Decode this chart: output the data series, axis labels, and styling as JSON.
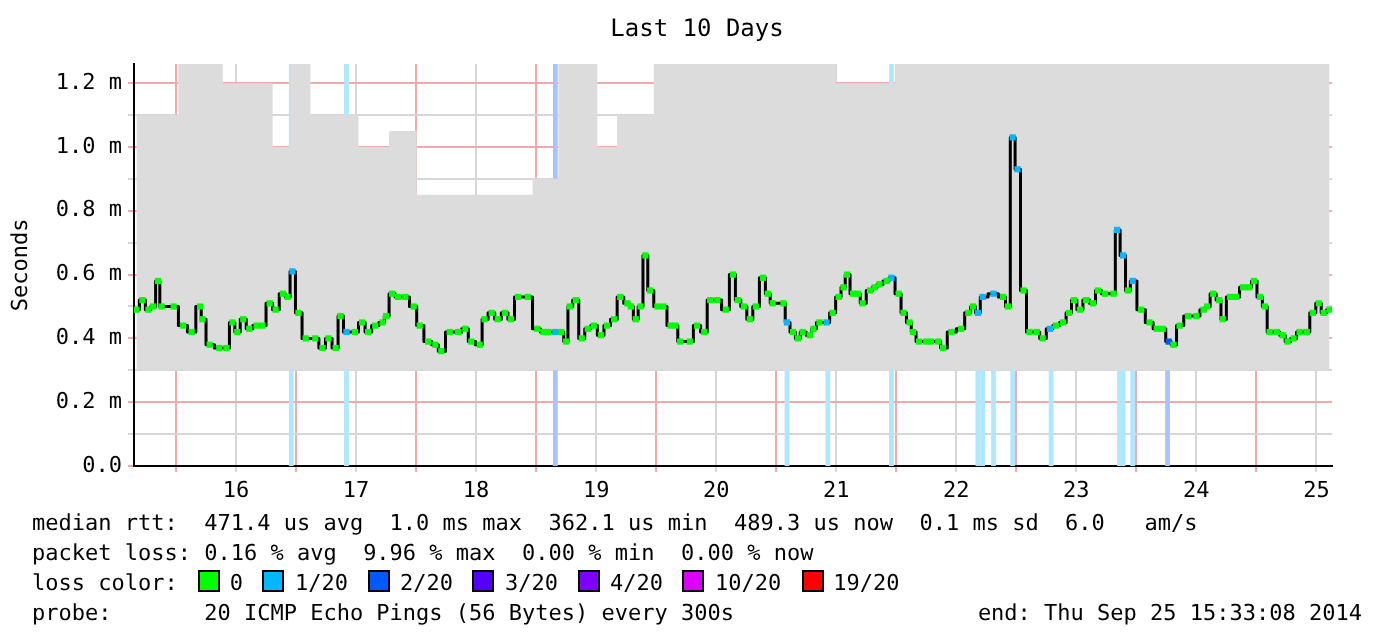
{
  "chart_data": {
    "type": "step",
    "title": "Last 10 Days",
    "ylabel": "Seconds",
    "legend_title": "loss color:",
    "annotations": [
      "median rtt:  471.4 us avg  1.0 ms max  362.1 us min  489.3 us now  0.1 ms sd  6.0   am/s",
      "packet loss: 0.16 % avg  9.96 % max  0.00 % min  0.00 % now",
      "probe:       20 ICMP Echo Pings (56 Bytes) every 300s",
      "end: Thu Sep 25 15:33:08 2014"
    ],
    "xlim": [
      15.15,
      25.13
    ],
    "ylim": [
      0,
      1.26
    ],
    "xticks": [
      {
        "value": 15.5,
        "label": null
      },
      16,
      {
        "value": 16.5,
        "label": null
      },
      17,
      {
        "value": 17.5,
        "label": null
      },
      18,
      {
        "value": 18.5,
        "label": null
      },
      19,
      {
        "value": 19.5,
        "label": null
      },
      20,
      {
        "value": 20.5,
        "label": null
      },
      21,
      {
        "value": 21.5,
        "label": null
      },
      22,
      {
        "value": 22.5,
        "label": null
      },
      23,
      {
        "value": 23.5,
        "label": null
      },
      24,
      {
        "value": 24.5,
        "label": null
      },
      25
    ],
    "yticks": [
      {
        "value": 0,
        "label": "0.0"
      },
      {
        "value": 0.1,
        "label": null
      },
      {
        "value": 0.2,
        "label": "0.2 m"
      },
      {
        "value": 0.3,
        "label": null
      },
      {
        "value": 0.4,
        "label": "0.4 m"
      },
      {
        "value": 0.5,
        "label": null
      },
      {
        "value": 0.6,
        "label": "0.6 m"
      },
      {
        "value": 0.7,
        "label": null
      },
      {
        "value": 0.8,
        "label": "0.8 m"
      },
      {
        "value": 0.9,
        "label": null
      },
      {
        "value": 1.0,
        "label": "1.0 m"
      },
      {
        "value": 1.1,
        "label": null
      },
      {
        "value": 1.2,
        "label": "1.2 m"
      }
    ],
    "grid": true,
    "legend": "bottom",
    "bands": [
      {
        "axis": "x",
        "from": 16.44,
        "to": 16.48,
        "color": "#aee8ff"
      },
      {
        "axis": "x",
        "from": 16.9,
        "to": 16.94,
        "color": "#aee8ff"
      },
      {
        "axis": "x",
        "from": 18.64,
        "to": 18.68,
        "color": "#a8c4ff"
      },
      {
        "axis": "x",
        "from": 20.57,
        "to": 20.61,
        "color": "#aee8ff"
      },
      {
        "axis": "x",
        "from": 20.91,
        "to": 20.95,
        "color": "#aee8ff"
      },
      {
        "axis": "x",
        "from": 21.44,
        "to": 21.48,
        "color": "#aee8ff"
      },
      {
        "axis": "x",
        "from": 22.16,
        "to": 22.2,
        "color": "#aee8ff"
      },
      {
        "axis": "x",
        "from": 22.2,
        "to": 22.24,
        "color": "#aee8ff"
      },
      {
        "axis": "x",
        "from": 22.29,
        "to": 22.33,
        "color": "#aee8ff"
      },
      {
        "axis": "x",
        "from": 22.45,
        "to": 22.49,
        "color": "#aee8ff"
      },
      {
        "axis": "x",
        "from": 22.77,
        "to": 22.81,
        "color": "#aee8ff"
      },
      {
        "axis": "x",
        "from": 23.34,
        "to": 23.38,
        "color": "#aee8ff"
      },
      {
        "axis": "x",
        "from": 23.38,
        "to": 23.41,
        "color": "#aee8ff"
      },
      {
        "axis": "x",
        "from": 23.45,
        "to": 23.49,
        "color": "#aee8ff"
      },
      {
        "axis": "x",
        "from": 23.74,
        "to": 23.78,
        "color": "#a8c4ff"
      }
    ],
    "x": [
      15.17,
      15.22,
      15.27,
      15.31,
      15.35,
      15.38,
      15.48,
      15.56,
      15.63,
      15.7,
      15.72,
      15.78,
      15.86,
      15.92,
      15.97,
      16.01,
      16.06,
      16.11,
      16.17,
      16.22,
      16.28,
      16.33,
      16.39,
      16.43,
      16.47,
      16.52,
      16.58,
      16.66,
      16.72,
      16.77,
      16.83,
      16.87,
      16.92,
      16.99,
      17.05,
      17.1,
      17.16,
      17.22,
      17.25,
      17.3,
      17.35,
      17.41,
      17.48,
      17.53,
      17.6,
      17.66,
      17.71,
      17.78,
      17.85,
      17.91,
      17.96,
      18.03,
      18.07,
      18.13,
      18.18,
      18.24,
      18.29,
      18.35,
      18.43,
      18.51,
      18.56,
      18.6,
      18.66,
      18.71,
      18.75,
      18.78,
      18.83,
      18.88,
      18.93,
      18.98,
      19.04,
      19.09,
      19.15,
      19.2,
      19.26,
      19.29,
      19.33,
      19.37,
      19.41,
      19.45,
      19.51,
      19.56,
      19.62,
      19.66,
      19.7,
      19.78,
      19.84,
      19.9,
      19.95,
      20.01,
      20.08,
      20.14,
      20.18,
      20.23,
      20.28,
      20.33,
      20.39,
      20.43,
      20.47,
      20.56,
      20.59,
      20.64,
      20.68,
      20.72,
      20.78,
      20.81,
      20.86,
      20.92,
      20.97,
      21.02,
      21.06,
      21.09,
      21.14,
      21.18,
      21.22,
      21.28,
      21.32,
      21.36,
      21.42,
      21.46,
      21.52,
      21.56,
      21.61,
      21.64,
      21.69,
      21.75,
      21.79,
      21.85,
      21.89,
      21.96,
      22.04,
      22.1,
      22.14,
      22.18,
      22.22,
      22.31,
      22.39,
      22.43,
      22.47,
      22.51,
      22.56,
      22.61,
      22.67,
      22.72,
      22.78,
      22.83,
      22.89,
      22.94,
      22.98,
      23.03,
      23.08,
      23.14,
      23.18,
      23.24,
      23.31,
      23.34,
      23.39,
      23.43,
      23.47,
      23.54,
      23.61,
      23.67,
      23.72,
      23.77,
      23.81,
      23.86,
      23.93,
      24.0,
      24.06,
      24.09,
      24.14,
      24.19,
      24.22,
      24.28,
      24.33,
      24.39,
      24.44,
      24.48,
      24.53,
      24.57,
      24.61,
      24.67,
      24.72,
      24.76,
      24.81,
      24.86,
      24.92,
      24.97,
      25.02,
      25.06,
      25.11
    ],
    "series": [
      {
        "color": "#000000",
        "values": [
          0.49,
          0.52,
          0.49,
          0.5,
          0.58,
          0.5,
          0.5,
          0.44,
          0.42,
          0.5,
          0.46,
          0.38,
          0.37,
          0.37,
          0.45,
          0.42,
          0.46,
          0.43,
          0.44,
          0.44,
          0.51,
          0.49,
          0.54,
          0.53,
          0.61,
          0.48,
          0.4,
          0.4,
          0.37,
          0.4,
          0.37,
          0.47,
          0.42,
          0.42,
          0.45,
          0.42,
          0.44,
          0.45,
          0.47,
          0.54,
          0.53,
          0.53,
          0.5,
          0.44,
          0.39,
          0.38,
          0.36,
          0.42,
          0.42,
          0.43,
          0.39,
          0.38,
          0.46,
          0.48,
          0.46,
          0.48,
          0.46,
          0.53,
          0.53,
          0.43,
          0.42,
          0.42,
          0.42,
          0.42,
          0.39,
          0.5,
          0.52,
          0.4,
          0.43,
          0.44,
          0.41,
          0.44,
          0.46,
          0.53,
          0.51,
          0.5,
          0.46,
          0.5,
          0.66,
          0.55,
          0.5,
          0.5,
          0.44,
          0.44,
          0.39,
          0.39,
          0.44,
          0.42,
          0.52,
          0.52,
          0.49,
          0.6,
          0.52,
          0.5,
          0.46,
          0.5,
          0.59,
          0.54,
          0.51,
          0.51,
          0.45,
          0.42,
          0.4,
          0.42,
          0.41,
          0.43,
          0.45,
          0.45,
          0.48,
          0.53,
          0.56,
          0.6,
          0.54,
          0.54,
          0.51,
          0.55,
          0.56,
          0.57,
          0.58,
          0.59,
          0.54,
          0.48,
          0.45,
          0.42,
          0.39,
          0.39,
          0.39,
          0.39,
          0.37,
          0.42,
          0.43,
          0.48,
          0.5,
          0.48,
          0.53,
          0.54,
          0.53,
          0.5,
          1.03,
          0.93,
          0.55,
          0.42,
          0.42,
          0.4,
          0.43,
          0.44,
          0.45,
          0.48,
          0.52,
          0.49,
          0.52,
          0.51,
          0.55,
          0.54,
          0.54,
          0.74,
          0.66,
          0.55,
          0.58,
          0.49,
          0.45,
          0.43,
          0.43,
          0.39,
          0.38,
          0.44,
          0.47,
          0.47,
          0.49,
          0.5,
          0.54,
          0.52,
          0.46,
          0.53,
          0.53,
          0.56,
          0.56,
          0.58,
          0.53,
          0.5,
          0.42,
          0.42,
          0.41,
          0.39,
          0.4,
          0.42,
          0.42,
          0.48,
          0.51,
          0.48,
          0.49
        ],
        "lower": [
          0.3,
          0.3,
          0.3,
          0.3,
          0.3,
          0.3,
          0.3,
          0.3,
          0.3,
          0.3,
          0.3,
          0.3,
          0.3,
          0.3,
          0.3,
          0.3,
          0.3,
          0.3,
          0.3,
          0.3,
          0.3,
          0.3,
          0.3,
          0.3,
          0.3,
          0.3,
          0.3,
          0.3,
          0.3,
          0.3,
          0.3,
          0.3,
          0.3,
          0.3,
          0.3,
          0.3,
          0.3,
          0.3,
          0.3,
          0.3,
          0.3,
          0.3,
          0.3,
          0.3,
          0.3,
          0.3,
          0.3,
          0.3,
          0.3,
          0.3,
          0.3,
          0.3,
          0.3,
          0.3,
          0.3,
          0.3,
          0.3,
          0.3,
          0.3,
          0.3,
          0.3,
          0.3,
          0.3,
          0.3,
          0.3,
          0.3,
          0.3,
          0.3,
          0.3,
          0.3,
          0.3,
          0.3,
          0.3,
          0.3,
          0.3,
          0.3,
          0.3,
          0.3,
          0.3,
          0.3,
          0.3,
          0.3,
          0.3,
          0.3,
          0.3,
          0.3,
          0.3,
          0.3,
          0.3,
          0.3,
          0.3,
          0.3,
          0.3,
          0.3,
          0.3,
          0.3,
          0.3,
          0.3,
          0.3,
          0.3,
          0.3,
          0.3,
          0.3,
          0.3,
          0.3,
          0.3,
          0.3,
          0.3,
          0.3,
          0.3,
          0.3,
          0.3,
          0.3,
          0.3,
          0.3,
          0.3,
          0.3,
          0.3,
          0.3,
          0.3,
          0.3,
          0.3,
          0.3,
          0.3,
          0.3,
          0.3,
          0.3,
          0.3,
          0.3,
          0.3,
          0.3,
          0.3,
          0.3,
          0.3,
          0.3,
          0.3,
          0.3,
          0.3,
          0.3,
          0.3,
          0.3,
          0.3,
          0.3,
          0.3,
          0.3,
          0.3,
          0.3,
          0.3,
          0.3,
          0.3,
          0.3,
          0.3,
          0.3,
          0.3,
          0.3,
          0.3,
          0.3,
          0.3,
          0.3,
          0.3,
          0.3,
          0.3,
          0.3,
          0.3,
          0.3,
          0.3,
          0.3,
          0.3,
          0.3,
          0.3,
          0.3,
          0.3,
          0.3,
          0.3,
          0.3,
          0.3,
          0.3,
          0.3,
          0.3,
          0.3,
          0.3,
          0.3,
          0.3,
          0.3,
          0.3,
          0.3,
          0.3,
          0.3,
          0.3,
          0.3,
          0.3
        ],
        "upper": [
          1.1,
          1.1,
          1.1,
          1.1,
          1.1,
          1.1,
          1.1,
          1.26,
          1.26,
          1.26,
          1.26,
          1.26,
          1.26,
          1.2,
          1.2,
          1.2,
          1.2,
          1.2,
          1.2,
          1.2,
          1.2,
          1.0,
          1.0,
          1.0,
          1.26,
          1.26,
          1.26,
          1.1,
          1.1,
          1.1,
          1.1,
          1.1,
          1.1,
          1.1,
          1.0,
          1.0,
          1.0,
          1.0,
          1.0,
          1.05,
          1.05,
          1.05,
          1.05,
          0.85,
          0.85,
          0.85,
          0.85,
          0.85,
          0.85,
          0.85,
          0.85,
          0.85,
          0.85,
          0.85,
          0.85,
          0.85,
          0.85,
          0.85,
          0.85,
          0.9,
          0.9,
          0.9,
          0.9,
          1.26,
          1.26,
          1.26,
          1.26,
          1.26,
          1.26,
          1.26,
          1.0,
          1.0,
          1.0,
          1.1,
          1.1,
          1.1,
          1.1,
          1.1,
          1.1,
          1.1,
          1.26,
          1.26,
          1.26,
          1.26,
          1.26,
          1.26,
          1.26,
          1.26,
          1.26,
          1.26,
          1.26,
          1.26,
          1.26,
          1.26,
          1.26,
          1.26,
          1.26,
          1.26,
          1.26,
          1.26,
          1.26,
          1.26,
          1.26,
          1.26,
          1.26,
          1.26,
          1.26,
          1.26,
          1.26,
          1.2,
          1.2,
          1.2,
          1.2,
          1.2,
          1.2,
          1.2,
          1.2,
          1.2,
          1.2,
          1.2,
          1.26,
          1.26,
          1.26,
          1.26,
          1.26,
          1.26,
          1.26,
          1.26,
          1.26,
          1.26,
          1.26,
          1.26,
          1.26,
          1.26,
          1.26,
          1.26,
          1.26,
          1.26,
          1.26,
          1.26,
          1.26,
          1.26,
          1.26,
          1.26,
          1.26,
          1.26,
          1.26,
          1.26,
          1.26,
          1.26,
          1.26,
          1.26,
          1.26,
          1.26,
          1.26,
          1.26,
          1.26,
          1.26,
          1.26,
          1.26,
          1.26,
          1.26,
          1.26,
          1.26,
          1.26,
          1.26,
          1.26,
          1.26,
          1.26,
          1.26,
          1.26,
          1.26,
          1.26,
          1.26,
          1.26,
          1.26,
          1.26,
          1.26,
          1.26,
          1.26,
          1.26,
          1.26,
          1.26,
          1.26,
          1.26,
          1.26,
          1.26,
          1.26,
          1.26,
          1.26,
          1.26
        ]
      },
      {
        "type": "scatter",
        "name": "0",
        "color": "#00ff00",
        "marker": "square",
        "x": [
          15.17,
          15.22,
          15.27,
          15.31,
          15.35,
          15.38,
          15.48,
          15.56,
          15.63,
          15.7,
          15.72,
          15.78,
          15.86,
          15.92,
          15.97,
          16.01,
          16.06,
          16.11,
          16.17,
          16.22,
          16.28,
          16.33,
          16.39,
          16.43,
          16.52,
          16.58,
          16.66,
          16.72,
          16.77,
          16.83,
          16.87,
          16.99,
          17.05,
          17.1,
          17.16,
          17.22,
          17.25,
          17.3,
          17.35,
          17.41,
          17.48,
          17.53,
          17.6,
          17.66,
          17.71,
          17.78,
          17.85,
          17.91,
          17.96,
          18.03,
          18.07,
          18.13,
          18.18,
          18.24,
          18.29,
          18.35,
          18.43,
          18.51,
          18.56,
          18.6,
          18.71,
          18.75,
          18.78,
          18.83,
          18.88,
          18.93,
          18.98,
          19.04,
          19.09,
          19.15,
          19.2,
          19.26,
          19.29,
          19.33,
          19.37,
          19.41,
          19.45,
          19.51,
          19.56,
          19.62,
          19.66,
          19.7,
          19.78,
          19.84,
          19.9,
          19.95,
          20.01,
          20.08,
          20.14,
          20.18,
          20.23,
          20.28,
          20.33,
          20.39,
          20.43,
          20.47,
          20.56,
          20.64,
          20.68,
          20.72,
          20.78,
          20.81,
          20.86,
          20.97,
          21.02,
          21.06,
          21.09,
          21.14,
          21.18,
          21.22,
          21.28,
          21.32,
          21.36,
          21.42,
          21.52,
          21.56,
          21.61,
          21.64,
          21.69,
          21.75,
          21.79,
          21.85,
          21.89,
          21.96,
          22.04,
          22.1,
          22.14,
          22.39,
          22.43,
          22.56,
          22.61,
          22.67,
          22.72,
          22.83,
          22.89,
          22.94,
          22.98,
          23.03,
          23.08,
          23.14,
          23.18,
          23.24,
          23.31,
          23.43,
          23.54,
          23.61,
          23.67,
          23.72,
          23.81,
          23.86,
          23.93,
          24.0,
          24.06,
          24.09,
          24.14,
          24.19,
          24.22,
          24.28,
          24.33,
          24.39,
          24.44,
          24.48,
          24.53,
          24.57,
          24.61,
          24.67,
          24.72,
          24.76,
          24.81,
          24.86,
          24.92,
          24.97,
          25.02,
          25.06,
          25.11
        ],
        "values": [
          0.49,
          0.52,
          0.49,
          0.5,
          0.58,
          0.5,
          0.5,
          0.44,
          0.42,
          0.5,
          0.46,
          0.38,
          0.37,
          0.37,
          0.45,
          0.42,
          0.46,
          0.43,
          0.44,
          0.44,
          0.51,
          0.49,
          0.54,
          0.53,
          0.48,
          0.4,
          0.4,
          0.37,
          0.4,
          0.37,
          0.47,
          0.42,
          0.45,
          0.42,
          0.44,
          0.45,
          0.47,
          0.54,
          0.53,
          0.53,
          0.5,
          0.44,
          0.39,
          0.38,
          0.36,
          0.42,
          0.42,
          0.43,
          0.39,
          0.38,
          0.46,
          0.48,
          0.46,
          0.48,
          0.46,
          0.53,
          0.53,
          0.43,
          0.42,
          0.42,
          0.42,
          0.39,
          0.5,
          0.52,
          0.4,
          0.43,
          0.44,
          0.41,
          0.44,
          0.46,
          0.53,
          0.51,
          0.5,
          0.46,
          0.5,
          0.66,
          0.55,
          0.5,
          0.5,
          0.44,
          0.44,
          0.39,
          0.39,
          0.44,
          0.42,
          0.52,
          0.52,
          0.49,
          0.6,
          0.52,
          0.5,
          0.46,
          0.5,
          0.59,
          0.54,
          0.51,
          0.51,
          0.42,
          0.4,
          0.42,
          0.41,
          0.43,
          0.45,
          0.48,
          0.53,
          0.56,
          0.6,
          0.54,
          0.54,
          0.51,
          0.55,
          0.56,
          0.57,
          0.58,
          0.54,
          0.48,
          0.45,
          0.42,
          0.39,
          0.39,
          0.39,
          0.39,
          0.37,
          0.42,
          0.43,
          0.48,
          0.5,
          0.53,
          0.5,
          0.55,
          0.42,
          0.42,
          0.4,
          0.44,
          0.45,
          0.48,
          0.52,
          0.49,
          0.52,
          0.51,
          0.55,
          0.54,
          0.54,
          0.55,
          0.49,
          0.45,
          0.43,
          0.43,
          0.38,
          0.44,
          0.47,
          0.47,
          0.49,
          0.5,
          0.54,
          0.52,
          0.46,
          0.53,
          0.53,
          0.56,
          0.56,
          0.58,
          0.53,
          0.5,
          0.42,
          0.42,
          0.41,
          0.39,
          0.4,
          0.42,
          0.42,
          0.48,
          0.51,
          0.48,
          0.49
        ]
      },
      {
        "type": "scatter",
        "name": "1/20",
        "color": "#00b8ff",
        "marker": "square",
        "x": [
          16.47,
          16.92,
          18.66,
          20.59,
          20.92,
          21.46,
          22.18,
          22.22,
          22.31,
          22.47,
          22.51,
          22.78,
          23.34,
          23.39,
          23.47
        ],
        "values": [
          0.61,
          0.42,
          0.42,
          0.45,
          0.45,
          0.59,
          0.48,
          0.53,
          0.54,
          1.03,
          0.93,
          0.43,
          0.74,
          0.66,
          0.58
        ]
      },
      {
        "type": "scatter",
        "name": "2/20",
        "color": "#0059ff",
        "marker": "square",
        "x": [
          23.77
        ],
        "values": [
          0.39
        ]
      },
      {
        "type": "scatter",
        "name": "3/20",
        "color": "#5500ff",
        "marker": "square",
        "values": [
          null,
          null,
          null,
          null,
          null,
          null,
          null,
          null,
          null,
          null,
          null,
          null,
          null,
          null,
          null,
          null,
          null,
          null,
          null,
          null,
          null,
          null,
          null,
          null,
          null,
          null,
          null,
          null,
          null,
          null,
          null,
          null,
          null,
          null,
          null,
          null,
          null,
          null,
          null,
          null,
          null,
          null,
          null,
          null,
          null,
          null,
          null,
          null,
          null,
          null,
          null,
          null,
          null,
          null,
          null,
          null,
          null,
          null,
          null,
          null,
          null,
          null,
          null,
          null,
          null,
          null,
          null,
          null,
          null,
          null,
          null,
          null,
          null,
          null,
          null,
          null,
          null,
          null,
          null,
          null,
          null,
          null,
          null,
          null,
          null,
          null,
          null,
          null,
          null,
          null,
          null,
          null,
          null,
          null,
          null,
          null,
          null,
          null,
          null,
          null,
          null,
          null,
          null,
          null,
          null,
          null,
          null,
          null,
          null,
          null,
          null,
          null,
          null,
          null,
          null,
          null,
          null,
          null,
          null,
          null,
          null,
          null,
          null,
          null,
          null,
          null,
          null,
          null,
          null,
          null,
          null,
          null,
          null,
          null,
          null,
          null,
          null,
          null,
          null,
          null,
          null,
          null,
          null,
          null,
          null,
          null,
          null,
          null,
          null,
          null,
          null,
          null,
          null,
          null,
          null,
          null,
          null,
          null,
          null,
          null,
          null,
          null,
          null,
          null,
          null,
          null,
          null,
          null,
          null,
          null,
          null,
          null,
          null,
          null,
          null,
          null,
          null,
          null,
          null,
          null,
          null,
          null,
          null,
          null,
          null,
          null,
          null,
          null,
          null,
          null,
          null
        ]
      },
      {
        "type": "scatter",
        "name": "4/20",
        "color": "#7e00ff",
        "marker": "square",
        "values": [
          null,
          null,
          null,
          null,
          null,
          null,
          null,
          null,
          null,
          null,
          null,
          null,
          null,
          null,
          null,
          null,
          null,
          null,
          null,
          null,
          null,
          null,
          null,
          null,
          null,
          null,
          null,
          null,
          null,
          null,
          null,
          null,
          null,
          null,
          null,
          null,
          null,
          null,
          null,
          null,
          null,
          null,
          null,
          null,
          null,
          null,
          null,
          null,
          null,
          null,
          null,
          null,
          null,
          null,
          null,
          null,
          null,
          null,
          null,
          null,
          null,
          null,
          null,
          null,
          null,
          null,
          null,
          null,
          null,
          null,
          null,
          null,
          null,
          null,
          null,
          null,
          null,
          null,
          null,
          null,
          null,
          null,
          null,
          null,
          null,
          null,
          null,
          null,
          null,
          null,
          null,
          null,
          null,
          null,
          null,
          null,
          null,
          null,
          null,
          null,
          null,
          null,
          null,
          null,
          null,
          null,
          null,
          null,
          null,
          null,
          null,
          null,
          null,
          null,
          null,
          null,
          null,
          null,
          null,
          null,
          null,
          null,
          null,
          null,
          null,
          null,
          null,
          null,
          null,
          null,
          null,
          null,
          null,
          null,
          null,
          null,
          null,
          null,
          null,
          null,
          null,
          null,
          null,
          null,
          null,
          null,
          null,
          null,
          null,
          null,
          null,
          null,
          null,
          null,
          null,
          null,
          null,
          null,
          null,
          null,
          null,
          null,
          null,
          null,
          null,
          null,
          null,
          null,
          null,
          null,
          null,
          null,
          null,
          null,
          null,
          null,
          null,
          null,
          null,
          null,
          null,
          null,
          null,
          null,
          null,
          null,
          null,
          null,
          null,
          null,
          null
        ]
      },
      {
        "type": "scatter",
        "name": "10/20",
        "color": "#dd00ff",
        "marker": "square",
        "values": [
          null,
          null,
          null,
          null,
          null,
          null,
          null,
          null,
          null,
          null,
          null,
          null,
          null,
          null,
          null,
          null,
          null,
          null,
          null,
          null,
          null,
          null,
          null,
          null,
          null,
          null,
          null,
          null,
          null,
          null,
          null,
          null,
          null,
          null,
          null,
          null,
          null,
          null,
          null,
          null,
          null,
          null,
          null,
          null,
          null,
          null,
          null,
          null,
          null,
          null,
          null,
          null,
          null,
          null,
          null,
          null,
          null,
          null,
          null,
          null,
          null,
          null,
          null,
          null,
          null,
          null,
          null,
          null,
          null,
          null,
          null,
          null,
          null,
          null,
          null,
          null,
          null,
          null,
          null,
          null,
          null,
          null,
          null,
          null,
          null,
          null,
          null,
          null,
          null,
          null,
          null,
          null,
          null,
          null,
          null,
          null,
          null,
          null,
          null,
          null,
          null,
          null,
          null,
          null,
          null,
          null,
          null,
          null,
          null,
          null,
          null,
          null,
          null,
          null,
          null,
          null,
          null,
          null,
          null,
          null,
          null,
          null,
          null,
          null,
          null,
          null,
          null,
          null,
          null,
          null,
          null,
          null,
          null,
          null,
          null,
          null,
          null,
          null,
          null,
          null,
          null,
          null,
          null,
          null,
          null,
          null,
          null,
          null,
          null,
          null,
          null,
          null,
          null,
          null,
          null,
          null,
          null,
          null,
          null,
          null,
          null,
          null,
          null,
          null,
          null,
          null,
          null,
          null,
          null,
          null,
          null,
          null,
          null,
          null,
          null,
          null,
          null,
          null,
          null,
          null,
          null,
          null,
          null,
          null,
          null,
          null,
          null,
          null,
          null,
          null,
          null
        ]
      },
      {
        "type": "scatter",
        "name": "19/20",
        "color": "#ff0000",
        "marker": "square",
        "values": [
          null,
          null,
          null,
          null,
          null,
          null,
          null,
          null,
          null,
          null,
          null,
          null,
          null,
          null,
          null,
          null,
          null,
          null,
          null,
          null,
          null,
          null,
          null,
          null,
          null,
          null,
          null,
          null,
          null,
          null,
          null,
          null,
          null,
          null,
          null,
          null,
          null,
          null,
          null,
          null,
          null,
          null,
          null,
          null,
          null,
          null,
          null,
          null,
          null,
          null,
          null,
          null,
          null,
          null,
          null,
          null,
          null,
          null,
          null,
          null,
          null,
          null,
          null,
          null,
          null,
          null,
          null,
          null,
          null,
          null,
          null,
          null,
          null,
          null,
          null,
          null,
          null,
          null,
          null,
          null,
          null,
          null,
          null,
          null,
          null,
          null,
          null,
          null,
          null,
          null,
          null,
          null,
          null,
          null,
          null,
          null,
          null,
          null,
          null,
          null,
          null,
          null,
          null,
          null,
          null,
          null,
          null,
          null,
          null,
          null,
          null,
          null,
          null,
          null,
          null,
          null,
          null,
          null,
          null,
          null,
          null,
          null,
          null,
          null,
          null,
          null,
          null,
          null,
          null,
          null,
          null,
          null,
          null,
          null,
          null,
          null,
          null,
          null,
          null,
          null,
          null,
          null,
          null,
          null,
          null,
          null,
          null,
          null,
          null,
          null,
          null,
          null,
          null,
          null,
          null,
          null,
          null,
          null,
          null,
          null,
          null,
          null,
          null,
          null,
          null,
          null,
          null,
          null,
          null,
          null,
          null,
          null,
          null,
          null,
          null,
          null,
          null,
          null,
          null,
          null,
          null,
          null,
          null,
          null,
          null,
          null,
          null,
          null,
          null,
          null,
          null
        ]
      }
    ]
  }
}
